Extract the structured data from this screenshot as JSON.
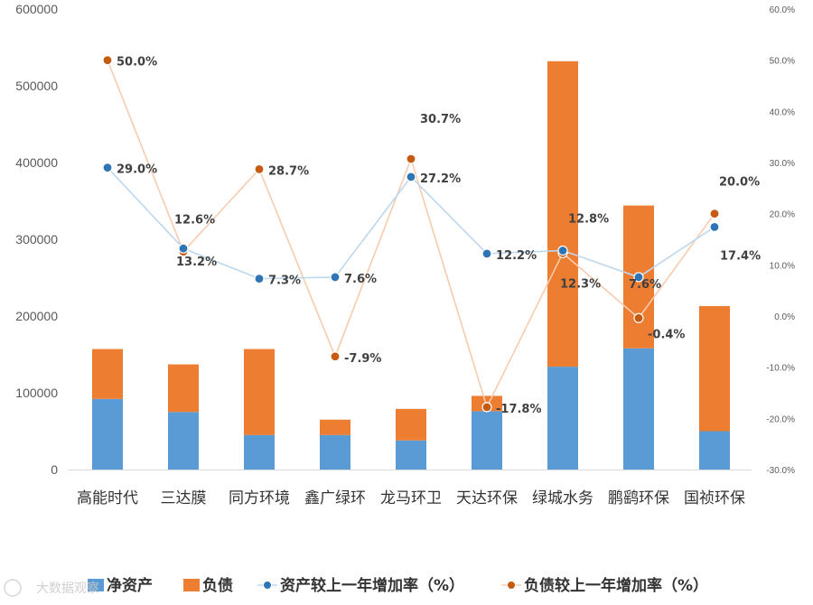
{
  "chart_data": {
    "type": "bar",
    "stacked": true,
    "categories": [
      "高能时代",
      "三达膜",
      "同方环境",
      "鑫广绿环",
      "龙马环卫",
      "天达环保",
      "绿城水务",
      "鹏鹞环保",
      "国祯环保"
    ],
    "series": [
      {
        "name": "净资产",
        "kind": "bar",
        "axis": "left",
        "color": "#5B9BD5",
        "values": [
          92000,
          75000,
          45000,
          45000,
          38000,
          76000,
          134000,
          158000,
          50000
        ]
      },
      {
        "name": "负债",
        "kind": "bar",
        "axis": "left",
        "color": "#ED7D31",
        "values": [
          65000,
          62000,
          112000,
          20000,
          41000,
          20000,
          398000,
          186000,
          163000
        ]
      },
      {
        "name": "资产较上一年增加率（%）",
        "kind": "line",
        "axis": "right",
        "color": "#2E75B6",
        "values": [
          29.0,
          13.2,
          7.3,
          7.6,
          27.2,
          12.2,
          12.8,
          7.6,
          17.4
        ],
        "labels": [
          "29.0%",
          "13.2%",
          "7.3%",
          "7.6%",
          "27.2%",
          "12.2%",
          "12.8%",
          "7.6%",
          "17.4%"
        ]
      },
      {
        "name": "负债较上一年增加率（%）",
        "kind": "line",
        "axis": "right",
        "color": "#C55A11",
        "values": [
          50.0,
          12.6,
          28.7,
          -7.9,
          30.7,
          -17.8,
          12.3,
          -0.4,
          20.0
        ],
        "labels": [
          "50.0%",
          "12.6%",
          "28.7%",
          "-7.9%",
          "30.7%",
          "-17.8%",
          "12.3%",
          "-0.4%",
          "20.0%"
        ]
      }
    ],
    "y_left": {
      "min": 0,
      "max": 600000,
      "ticks": [
        "0",
        "100000",
        "200000",
        "300000",
        "400000",
        "500000",
        "600000"
      ]
    },
    "y_right": {
      "min": -30,
      "max": 60,
      "ticks": [
        "-30.0%",
        "-20.0%",
        "-10.0%",
        "0.0%",
        "10.0%",
        "20.0%",
        "30.0%",
        "40.0%",
        "50.0%",
        "60.0%"
      ]
    },
    "grid": false,
    "legend_position": "bottom"
  },
  "legend": {
    "items": [
      "净资产",
      "负债",
      "资产较上一年增加率（%）",
      "负债较上一年增加率（%）"
    ]
  },
  "watermark": {
    "text": "大数据观察"
  }
}
